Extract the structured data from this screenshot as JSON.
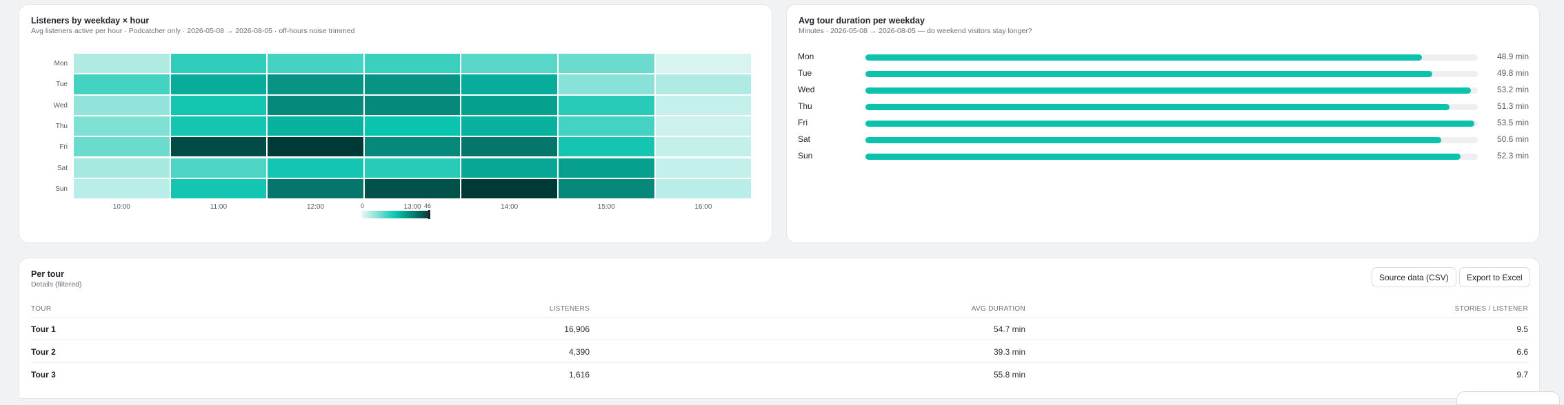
{
  "heatmap_card": {
    "title": "Listeners by weekday × hour",
    "subtitle": "Avg listeners active per hour · Podcatcher only · 2026-05-08 → 2026-08-05 · off-hours noise trimmed"
  },
  "duration_card": {
    "title": "Avg tour duration per weekday",
    "subtitle": "Minutes · 2026-05-08 → 2026-08-05 — do weekend visitors stay longer?"
  },
  "table_card": {
    "title": "Per tour",
    "subtitle": "Details (filtered)",
    "source_button": "Source data (CSV)",
    "export_button": "Export to Excel",
    "columns": [
      "TOUR",
      "LISTENERS",
      "AVG DURATION",
      "STORIES / LISTENER"
    ],
    "rows": [
      {
        "tour": "Tour 1",
        "listeners": "16,906",
        "avg_duration": "54.7 min",
        "stories": "9.5"
      },
      {
        "tour": "Tour 2",
        "listeners": "4,390",
        "avg_duration": "39.3 min",
        "stories": "6.6"
      },
      {
        "tour": "Tour 3",
        "listeners": "1,616",
        "avg_duration": "55.8 min",
        "stories": "9.7"
      }
    ]
  },
  "chart_data": [
    {
      "type": "heatmap",
      "rows": [
        "Mon",
        "Tue",
        "Wed",
        "Thu",
        "Fri",
        "Sat",
        "Sun"
      ],
      "columns": [
        "10:00",
        "11:00",
        "12:00",
        "13:00",
        "14:00",
        "15:00",
        "16:00"
      ],
      "values": [
        [
          6,
          19,
          17,
          18,
          15,
          13,
          2
        ],
        [
          17,
          27,
          31,
          31,
          27,
          10,
          6
        ],
        [
          9,
          22,
          33,
          33,
          29,
          20,
          4
        ],
        [
          11,
          22,
          26,
          23,
          26,
          17,
          3
        ],
        [
          13,
          43,
          46,
          33,
          36,
          22,
          4
        ],
        [
          7,
          16,
          22,
          20,
          28,
          29,
          4
        ],
        [
          5,
          22,
          36,
          42,
          46,
          33,
          5
        ]
      ],
      "scale_min": 0,
      "scale_max": 46,
      "color_low": "#eaf9f6",
      "color_mid": "#0ac4af",
      "color_high": "#003a36"
    },
    {
      "type": "bar",
      "orientation": "horizontal",
      "categories": [
        "Mon",
        "Tue",
        "Wed",
        "Thu",
        "Fri",
        "Sat",
        "Sun"
      ],
      "values": [
        48.9,
        49.8,
        53.2,
        51.3,
        53.5,
        50.6,
        52.3
      ],
      "value_labels": [
        "48.9 min",
        "49.8 min",
        "53.2 min",
        "51.3 min",
        "53.5 min",
        "50.6 min",
        "52.3 min"
      ],
      "xlim": [
        0,
        53.8
      ],
      "color": "#0bc3ad"
    }
  ]
}
